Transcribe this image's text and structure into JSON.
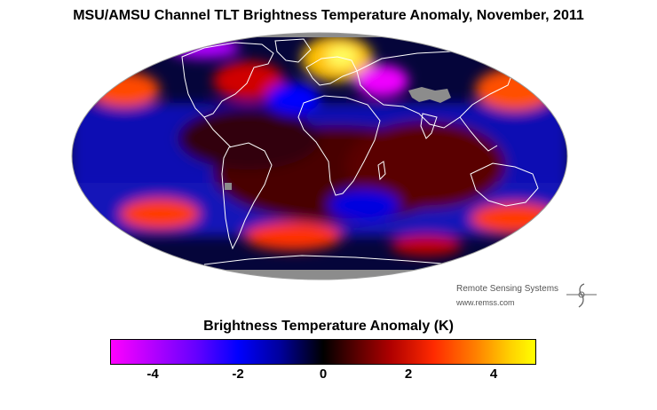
{
  "title": "MSU/AMSU Channel TLT Brightness Temperature Anomaly, November, 2011",
  "map": {
    "projection": "Mollweide",
    "no_data_color": "#8c8c8c",
    "coastline_color": "#ffffff"
  },
  "credit": {
    "organization": "Remote Sensing Systems",
    "url": "www.remss.com"
  },
  "colorbar": {
    "title": "Brightness Temperature Anomaly (K)",
    "min": -5,
    "max": 5,
    "ticks": [
      {
        "label": "-4",
        "value": -4
      },
      {
        "label": "-2",
        "value": -2
      },
      {
        "label": "0",
        "value": 0
      },
      {
        "label": "2",
        "value": 2
      },
      {
        "label": "4",
        "value": 4
      }
    ],
    "colors": [
      "#ff00ff",
      "#0000ff",
      "#000000",
      "#b00000",
      "#ff8000",
      "#ffff00"
    ]
  }
}
